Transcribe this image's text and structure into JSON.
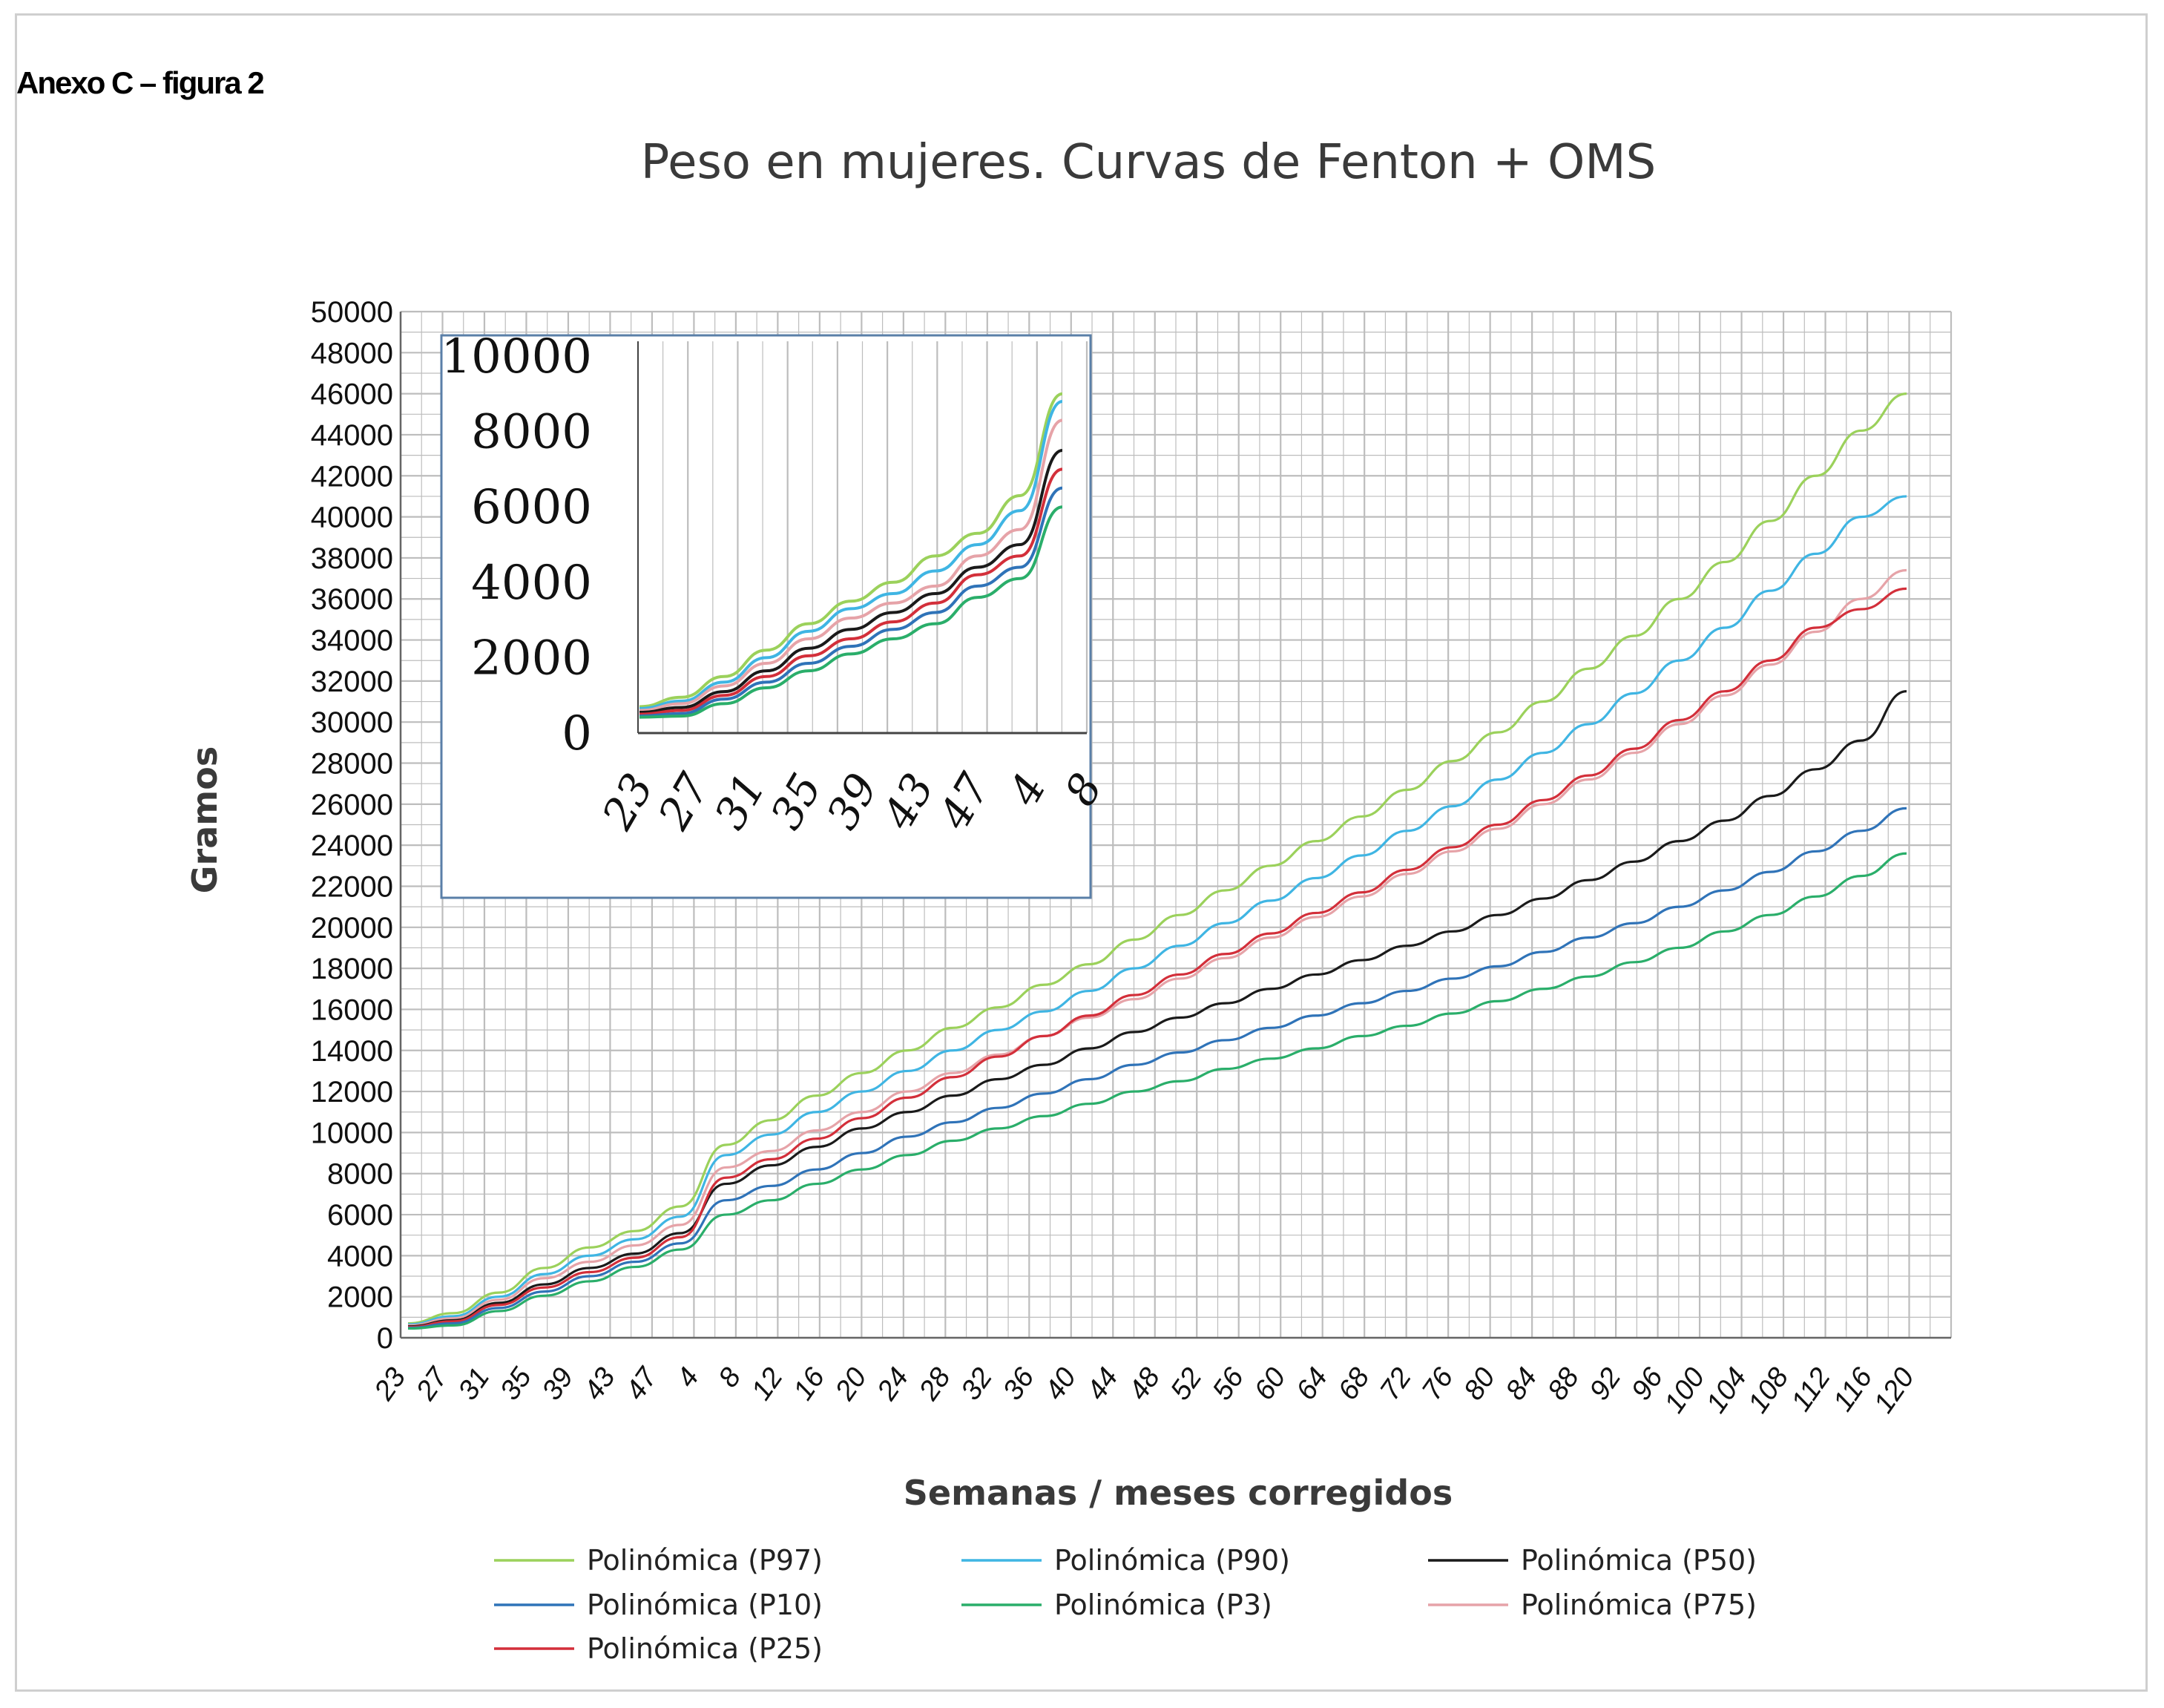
{
  "annex_label": "Anexo C – figura 2",
  "colors": {
    "P97": "#9bd15b",
    "P90": "#3fb5e3",
    "P50": "#1a1a1a",
    "P10": "#2f73b8",
    "P3": "#2aae6a",
    "P75": "#e6a3a8",
    "P25": "#d32f3a",
    "grid": "#bdbdbd",
    "inset_border": "#5a7fa8"
  },
  "chart_data": {
    "type": "line",
    "title": "Peso en mujeres.  Curvas de Fenton + OMS",
    "xlabel": "Semanas / meses corregidos",
    "ylabel": "Gramos",
    "ylim": [
      0,
      50000
    ],
    "yticks": [
      0,
      2000,
      4000,
      6000,
      8000,
      10000,
      12000,
      14000,
      16000,
      18000,
      20000,
      22000,
      24000,
      26000,
      28000,
      30000,
      32000,
      34000,
      36000,
      38000,
      40000,
      42000,
      44000,
      46000,
      48000,
      50000
    ],
    "xtick_labels": [
      "23",
      "27",
      "31",
      "35",
      "39",
      "43",
      "47",
      "4",
      "8",
      "12",
      "16",
      "20",
      "24",
      "28",
      "32",
      "36",
      "40",
      "44",
      "48",
      "52",
      "56",
      "60",
      "64",
      "68",
      "72",
      "76",
      "80",
      "84",
      "88",
      "92",
      "96",
      "100",
      "104",
      "108",
      "112",
      "116",
      "120"
    ],
    "grid": true,
    "legend_position": "bottom",
    "series": [
      {
        "name": "Polinómica (P97)",
        "key": "P97",
        "values": [
          700,
          1200,
          2200,
          3400,
          4400,
          5200,
          6400,
          9400,
          10600,
          11800,
          12900,
          14000,
          15100,
          16100,
          17200,
          18200,
          19400,
          20600,
          21800,
          23000,
          24200,
          25400,
          26700,
          28100,
          29500,
          31000,
          32600,
          34200,
          36000,
          37800,
          39800,
          42000,
          44200,
          46000
        ]
      },
      {
        "name": "Polinómica (P90)",
        "key": "P90",
        "values": [
          650,
          1050,
          2000,
          3100,
          4000,
          4800,
          5900,
          8900,
          9900,
          11000,
          12000,
          13000,
          14000,
          15000,
          15900,
          16900,
          18000,
          19100,
          20200,
          21300,
          22400,
          23500,
          24700,
          25900,
          27200,
          28500,
          29900,
          31400,
          33000,
          34600,
          36400,
          38200,
          40000,
          41000
        ]
      },
      {
        "name": "Polinómica (P75)",
        "key": "P75",
        "values": [
          600,
          950,
          1850,
          2900,
          3700,
          4500,
          5500,
          8300,
          9100,
          10100,
          11000,
          12000,
          12900,
          13800,
          14700,
          15600,
          16500,
          17500,
          18500,
          19500,
          20500,
          21500,
          22600,
          23700,
          24800,
          26000,
          27200,
          28500,
          29900,
          31300,
          32800,
          34400,
          36000,
          37400
        ]
      },
      {
        "name": "Polinómica (P50)",
        "key": "P50",
        "values": [
          550,
          850,
          1700,
          2600,
          3400,
          4100,
          5100,
          7500,
          8400,
          9300,
          10200,
          11000,
          11800,
          12600,
          13300,
          14100,
          14900,
          15600,
          16300,
          17000,
          17700,
          18400,
          19100,
          19800,
          20600,
          21400,
          22300,
          23200,
          24200,
          25200,
          26400,
          27700,
          29100,
          31500
        ]
      },
      {
        "name": "Polinómica (P25)",
        "key": "P25",
        "values": [
          520,
          800,
          1600,
          2450,
          3200,
          3900,
          4900,
          7800,
          8700,
          9700,
          10700,
          11700,
          12700,
          13700,
          14700,
          15700,
          16700,
          17700,
          18700,
          19700,
          20700,
          21700,
          22800,
          23900,
          25000,
          26200,
          27400,
          28700,
          30100,
          31500,
          33000,
          34600,
          35500,
          36500
        ]
      },
      {
        "name": "Polinómica (P10)",
        "key": "P10",
        "values": [
          480,
          700,
          1450,
          2250,
          3000,
          3700,
          4600,
          6700,
          7400,
          8200,
          9000,
          9800,
          10500,
          11200,
          11900,
          12600,
          13300,
          13900,
          14500,
          15100,
          15700,
          16300,
          16900,
          17500,
          18100,
          18800,
          19500,
          20200,
          21000,
          21800,
          22700,
          23700,
          24700,
          25800
        ]
      },
      {
        "name": "Polinómica (P3)",
        "key": "P3",
        "values": [
          450,
          600,
          1300,
          2050,
          2750,
          3450,
          4300,
          6000,
          6700,
          7500,
          8200,
          8900,
          9600,
          10200,
          10800,
          11400,
          12000,
          12500,
          13100,
          13600,
          14100,
          14700,
          15200,
          15800,
          16400,
          17000,
          17600,
          18300,
          19000,
          19800,
          20600,
          21500,
          22500,
          23600
        ]
      }
    ],
    "inset": {
      "ylim": [
        0,
        10000
      ],
      "yticks": [
        0,
        2000,
        4000,
        6000,
        8000,
        10000
      ],
      "xtick_labels": [
        "23",
        "27",
        "31",
        "35",
        "39",
        "43",
        "47",
        "4",
        "8"
      ],
      "series": [
        {
          "key": "P97",
          "values": [
            700,
            950,
            1500,
            2200,
            2900,
            3500,
            4000,
            4700,
            5300,
            6300,
            9000
          ]
        },
        {
          "key": "P90",
          "values": [
            650,
            850,
            1350,
            2000,
            2700,
            3300,
            3700,
            4300,
            5000,
            5900,
            8800
          ]
        },
        {
          "key": "P75",
          "values": [
            600,
            780,
            1250,
            1850,
            2500,
            3050,
            3450,
            3900,
            4700,
            5400,
            8300
          ]
        },
        {
          "key": "P50",
          "values": [
            550,
            680,
            1100,
            1650,
            2250,
            2750,
            3200,
            3700,
            4400,
            5000,
            7500
          ]
        },
        {
          "key": "P25",
          "values": [
            500,
            600,
            1000,
            1500,
            2050,
            2500,
            2950,
            3450,
            4200,
            4700,
            7000
          ]
        },
        {
          "key": "P10",
          "values": [
            450,
            520,
            900,
            1350,
            1850,
            2300,
            2750,
            3200,
            3900,
            4400,
            6500
          ]
        },
        {
          "key": "P3",
          "values": [
            420,
            450,
            780,
            1200,
            1650,
            2100,
            2500,
            2900,
            3600,
            4100,
            6000
          ]
        }
      ]
    }
  },
  "legend_items": [
    {
      "name": "Polinómica (P97)",
      "key": "P97"
    },
    {
      "name": "Polinómica (P90)",
      "key": "P90"
    },
    {
      "name": "Polinómica (P50)",
      "key": "P50"
    },
    {
      "name": "Polinómica (P10)",
      "key": "P10"
    },
    {
      "name": "Polinómica (P3)",
      "key": "P3"
    },
    {
      "name": "Polinómica (P75)",
      "key": "P75"
    },
    {
      "name": "Polinómica (P25)",
      "key": "P25"
    }
  ]
}
